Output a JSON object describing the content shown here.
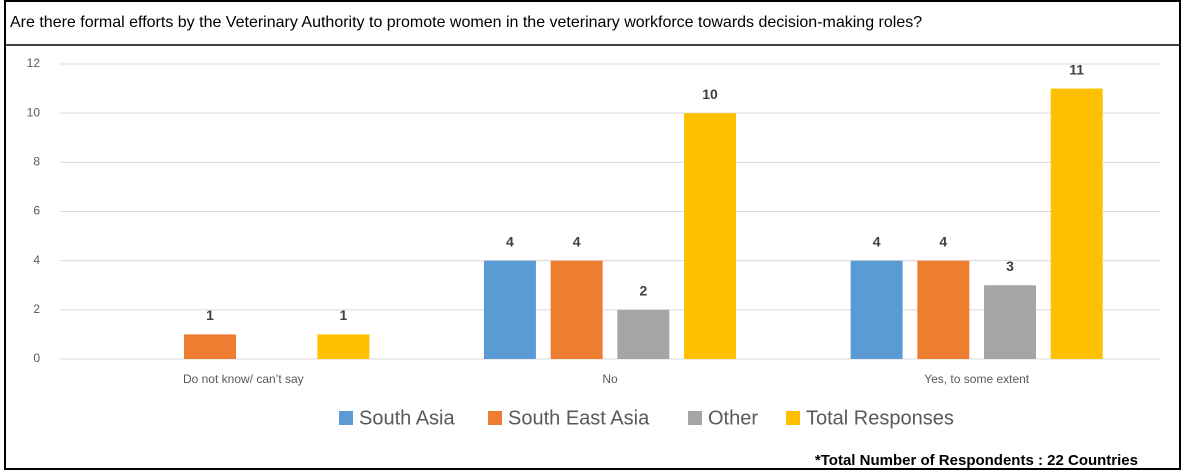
{
  "chart_data": {
    "type": "bar",
    "title": "Are there formal efforts by the Veterinary Authority to promote women  in the veterinary workforce towards decision-making roles?",
    "categories": [
      "Do not know/ can’t say",
      "No",
      "Yes, to some extent"
    ],
    "series": [
      {
        "name": "South Asia",
        "color": "#5b9bd5",
        "values": [
          0,
          4,
          4
        ]
      },
      {
        "name": "South East Asia",
        "color": "#ed7d31",
        "values": [
          1,
          4,
          4
        ]
      },
      {
        "name": "Other",
        "color": "#a5a5a5",
        "values": [
          0,
          2,
          3
        ]
      },
      {
        "name": "Total Responses",
        "color": "#ffc000",
        "values": [
          1,
          10,
          11
        ]
      }
    ],
    "ylim": [
      0,
      12
    ],
    "yticks": [
      0,
      2,
      4,
      6,
      8,
      10,
      12
    ],
    "grid": true,
    "note": "*Total Number of Respondents : 22 Countries"
  }
}
